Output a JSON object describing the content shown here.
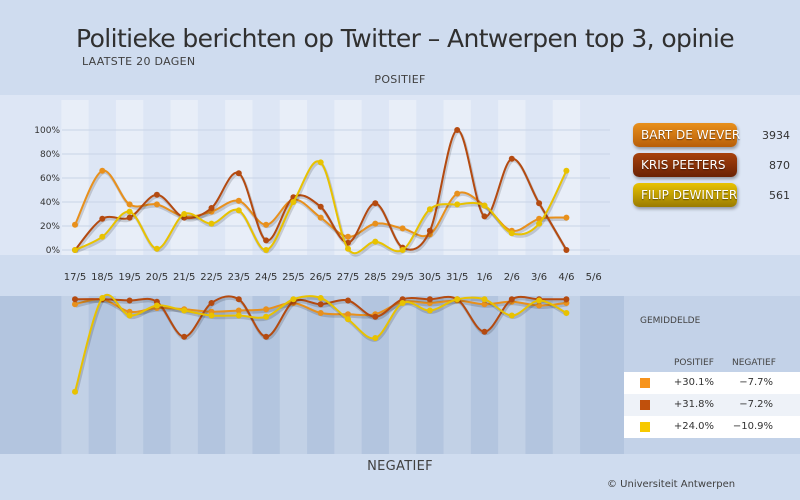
{
  "title": "Politieke berichten op Twitter – Antwerpen top 3, opinie",
  "subtitle": "LAATSTE 20 DAGEN",
  "positive_label": "POSITIEF",
  "negative_label": "NEGATIEF",
  "credit": "© Universiteit Antwerpen",
  "legend": [
    {
      "name": "BART DE WEVER",
      "count": "3934",
      "color": "#e8901c",
      "dark": "#b85e08"
    },
    {
      "name": "KRIS PEETERS",
      "count": "870",
      "color": "#a8420c",
      "dark": "#6a2204"
    },
    {
      "name": "FILIP DEWINTER",
      "count": "561",
      "color": "#e8c200",
      "dark": "#9a7a00"
    }
  ],
  "averages": {
    "title": "GEMIDDELDE",
    "header_pos": "POSITIEF",
    "header_neg": "NEGATIEF",
    "rows": [
      {
        "color": "#f7941d",
        "pos": "+30.1%",
        "neg": "−7.7%"
      },
      {
        "color": "#c0500c",
        "pos": "+31.8%",
        "neg": "−7.2%"
      },
      {
        "color": "#f7c900",
        "pos": "+24.0%",
        "neg": "−10.9%"
      }
    ]
  },
  "chart_data": {
    "type": "line",
    "categories": [
      "17/5",
      "18/5",
      "19/5",
      "20/5",
      "21/5",
      "22/5",
      "23/5",
      "24/5",
      "25/5",
      "26/5",
      "27/5",
      "28/5",
      "29/5",
      "30/5",
      "31/5",
      "1/6",
      "2/6",
      "3/6",
      "4/6",
      "5/6"
    ],
    "y_ticks": [
      "0%",
      "20%",
      "40%",
      "60%",
      "80%",
      "100%"
    ],
    "ylim_positive": [
      0,
      100
    ],
    "series_positive": [
      {
        "name": "BART DE WEVER",
        "color": "#e8901c",
        "values": [
          21,
          66,
          38,
          38,
          28,
          32,
          41,
          21,
          42,
          27,
          11,
          22,
          18,
          13,
          47,
          37,
          16,
          26,
          27,
          null
        ]
      },
      {
        "name": "KRIS PEETERS",
        "color": "#b44a10",
        "values": [
          0,
          26,
          27,
          46,
          27,
          35,
          64,
          8,
          44,
          36,
          6,
          39,
          2,
          16,
          100,
          28,
          76,
          39,
          0,
          null
        ]
      },
      {
        "name": "FILIP DEWINTER",
        "color": "#e8c200",
        "values": [
          0,
          11,
          32,
          1,
          30,
          22,
          33,
          0,
          40,
          73,
          1,
          7,
          0,
          34,
          38,
          37,
          14,
          22,
          66,
          null
        ]
      }
    ],
    "series_negative": [
      {
        "name": "BART DE WEVER",
        "color": "#e8901c",
        "values": [
          -5,
          -1,
          -11,
          -8,
          -9,
          -11,
          -10,
          -9,
          -4,
          -12,
          -13,
          -13,
          -3,
          -4,
          -2,
          -5,
          -3,
          -6,
          -4,
          null
        ]
      },
      {
        "name": "KRIS PEETERS",
        "color": "#b44a10",
        "values": [
          -1,
          -1,
          -2,
          -3,
          -31,
          -4,
          -1,
          -31,
          -3,
          -5,
          -2,
          -15,
          -1,
          -1,
          -1,
          -27,
          -1,
          -1,
          -1,
          null
        ]
      },
      {
        "name": "FILIP DEWINTER",
        "color": "#e8c200",
        "values": [
          -75,
          0,
          -14,
          -6,
          -10,
          -14,
          -14,
          -15,
          -1,
          0,
          -17,
          -32,
          -4,
          -10,
          -1,
          -1,
          -14,
          -2,
          -12,
          null
        ]
      }
    ]
  }
}
